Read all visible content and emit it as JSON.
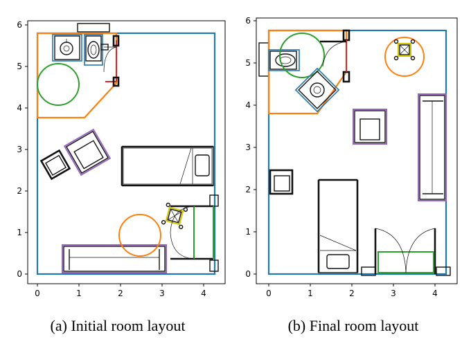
{
  "panels": [
    {
      "caption": "(a) Initial room layout",
      "x_ticks": [
        "0",
        "1",
        "2",
        "3",
        "4"
      ],
      "y_ticks": [
        "0",
        "1",
        "2",
        "3",
        "4",
        "5",
        "6"
      ]
    },
    {
      "caption": "(b) Final room layout",
      "x_ticks": [
        "0",
        "1",
        "2",
        "3",
        "4"
      ],
      "y_ticks": [
        "0",
        "1",
        "2",
        "3",
        "4",
        "5",
        "6"
      ]
    }
  ]
}
